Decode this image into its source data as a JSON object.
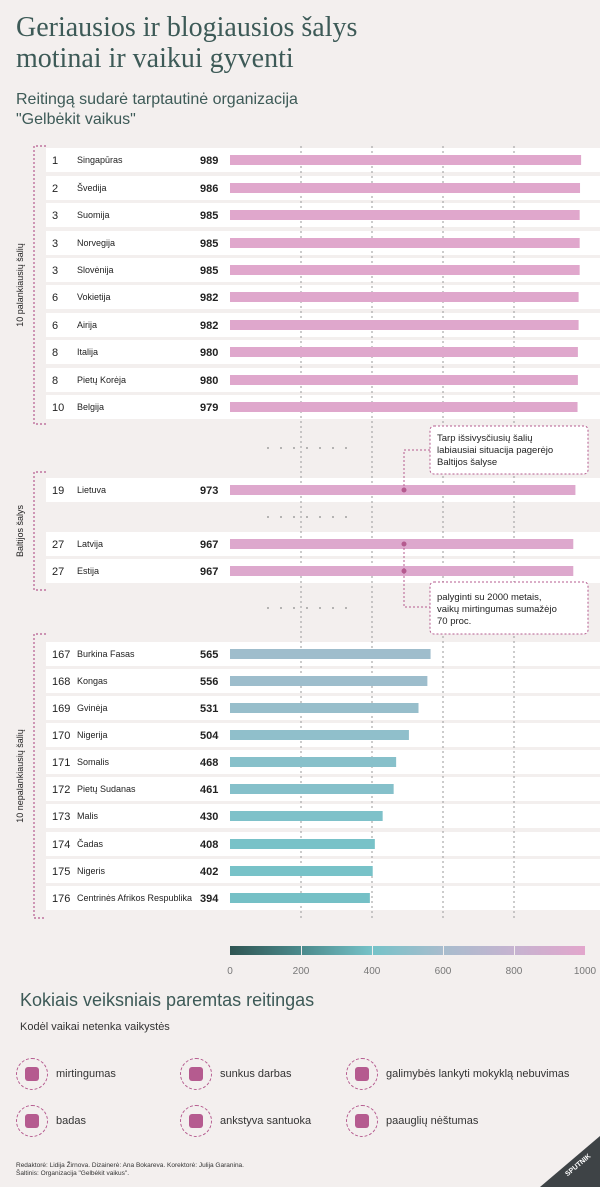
{
  "title_lines": [
    "Geriausios ir blogiausios šalys",
    "motinai ir vaikui gyventi"
  ],
  "subtitle_lines": [
    "Reitingą sudarė tarptautinė organizacija",
    "\"Gelbėkit vaikus\""
  ],
  "chart_data": {
    "type": "bar",
    "orientation": "horizontal",
    "title": "Geriausios ir blogiausios šalys motinai ir vaikui gyventi",
    "xlim": [
      0,
      1000
    ],
    "x_ticks": [
      "0",
      "200",
      "400",
      "600",
      "800",
      "1000"
    ],
    "color_scale": [
      "#2f5553",
      "#4b8a8c",
      "#76c2c8",
      "#a8bccd",
      "#c6b3d0",
      "#e2a6cc"
    ],
    "groups": [
      {
        "label": "10 palankiausių šalių",
        "rows": [
          {
            "rank": "1",
            "country": "Singapūras",
            "value": 989
          },
          {
            "rank": "2",
            "country": "Švedija",
            "value": 986
          },
          {
            "rank": "3",
            "country": "Suomija",
            "value": 985
          },
          {
            "rank": "3",
            "country": "Norvegija",
            "value": 985
          },
          {
            "rank": "3",
            "country": "Slovėnija",
            "value": 985
          },
          {
            "rank": "6",
            "country": "Vokietija",
            "value": 982
          },
          {
            "rank": "6",
            "country": "Airija",
            "value": 982
          },
          {
            "rank": "8",
            "country": "Italija",
            "value": 980
          },
          {
            "rank": "8",
            "country": "Pietų Korėja",
            "value": 980
          },
          {
            "rank": "10",
            "country": "Belgija",
            "value": 979
          }
        ]
      },
      {
        "label": "Baltijos šalys",
        "rows": [
          {
            "rank": "19",
            "country": "Lietuva",
            "value": 973
          },
          {
            "rank": "27",
            "country": "Latvija",
            "value": 967
          },
          {
            "rank": "27",
            "country": "Estija",
            "value": 967
          }
        ]
      },
      {
        "label": "10 nepalankiausių šalių",
        "rows": [
          {
            "rank": "167",
            "country": "Burkina Fasas",
            "value": 565
          },
          {
            "rank": "168",
            "country": "Kongas",
            "value": 556
          },
          {
            "rank": "169",
            "country": "Gvinėja",
            "value": 531
          },
          {
            "rank": "170",
            "country": "Nigerija",
            "value": 504
          },
          {
            "rank": "171",
            "country": "Somalis",
            "value": 468
          },
          {
            "rank": "172",
            "country": "Pietų Sudanas",
            "value": 461
          },
          {
            "rank": "173",
            "country": "Malis",
            "value": 430
          },
          {
            "rank": "174",
            "country": "Čadas",
            "value": 408
          },
          {
            "rank": "175",
            "country": "Nigeris",
            "value": 402
          },
          {
            "rank": "176",
            "country": "Centrinės Afrikos Respublika",
            "value": 394
          }
        ]
      }
    ],
    "annotations": [
      {
        "target": "Lietuva",
        "lines": [
          "Tarp išsivysčiusių šalių",
          "labiausiai situacija pagerėjo",
          "Baltijos šalyse"
        ]
      },
      {
        "target": "Latvija, Estija",
        "lines": [
          "palyginti su 2000 metais,",
          "vaikų mirtingumas sumažėjo",
          "70 proc."
        ]
      }
    ]
  },
  "factors": {
    "title": "Kokiais veiksniais paremtas reitingas",
    "subtitle": "Kodėl vaikai netenka vaikystės",
    "items": [
      {
        "icon": "mourning-mother-icon",
        "label": "mirtingumas"
      },
      {
        "icon": "hard-labor-icon",
        "label": "sunkus darbas"
      },
      {
        "icon": "running-to-school-icon",
        "label": "galimybės lankyti mokyklą nebuvimas"
      },
      {
        "icon": "hunger-child-icon",
        "label": "badas"
      },
      {
        "icon": "wedding-rings-icon",
        "label": "ankstyva santuoka"
      },
      {
        "icon": "pregnant-teen-icon",
        "label": "paauglių nėštumas"
      }
    ]
  },
  "credits": [
    "Redaktorė: Lidija Žirnova. Dizainerė: Ana Bokareva. Korektorė: Julija Garanina.",
    "Šaltinis: Organizacija \"Gelbėkit vaikus\"."
  ],
  "logo_text": "SPUTNIK",
  "colors": {
    "accent": "#b55b8f",
    "title": "#3d5a57"
  }
}
